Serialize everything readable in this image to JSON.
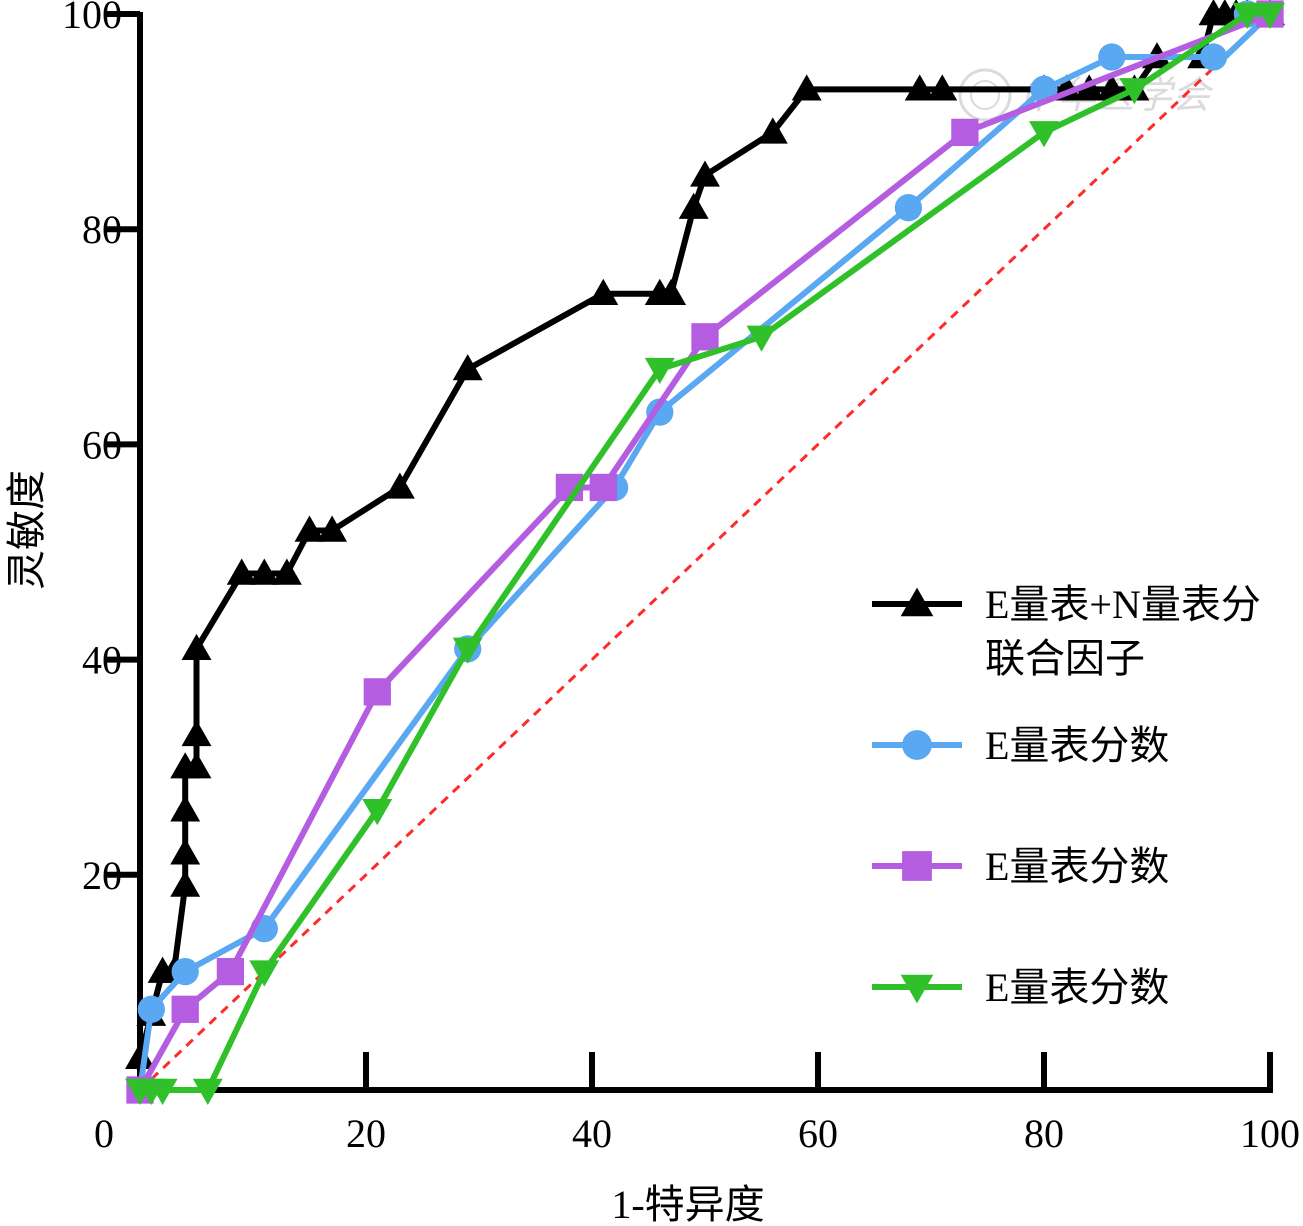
{
  "chart_data": {
    "type": "line",
    "title": "",
    "xlabel": "1-特异度",
    "ylabel": "灵敏度",
    "xlim": [
      0,
      100
    ],
    "ylim": [
      0,
      100
    ],
    "xticks": [
      "0",
      "20",
      "40",
      "60",
      "80",
      "100"
    ],
    "yticks": [
      "20",
      "40",
      "60",
      "80",
      "100"
    ],
    "grid": false,
    "legend_position": "right",
    "reference_line": {
      "x": [
        0,
        100
      ],
      "y": [
        0,
        100
      ],
      "color": "#ff2a2a",
      "style": "dashed"
    },
    "watermark_text": "中华医学会",
    "series": [
      {
        "name": "E量表+N量表分联合因子",
        "legend_lines": [
          "E量表+N量表分",
          "联合因子"
        ],
        "color": "#000000",
        "marker": "triangle-up",
        "x": [
          0,
          1,
          2,
          3,
          4,
          4,
          4,
          4,
          5,
          5,
          5,
          9,
          11,
          13,
          15,
          17,
          23,
          29,
          41,
          46,
          47,
          49,
          50,
          56,
          59,
          69,
          71,
          80,
          82,
          84,
          86,
          88,
          90,
          94,
          95,
          96,
          97,
          98,
          100
        ],
        "y": [
          3,
          7,
          11,
          11,
          19,
          22,
          26,
          30,
          30,
          33,
          41,
          48,
          48,
          48,
          52,
          52,
          56,
          67,
          74,
          74,
          74,
          82,
          85,
          89,
          93,
          93,
          93,
          93,
          93,
          93,
          93,
          93,
          96,
          96,
          100,
          100,
          100,
          100,
          100
        ]
      },
      {
        "name": "E量表分数",
        "legend_lines": [
          "E量表分数"
        ],
        "color": "#5aa7f2",
        "marker": "circle",
        "x": [
          0,
          1,
          4,
          11,
          29,
          42,
          46,
          68,
          80,
          86,
          96,
          100
        ],
        "y": [
          0,
          7.5,
          11,
          15,
          41,
          56,
          63,
          82,
          93,
          96,
          96,
          100
        ],
        "marker_x": [
          0,
          1,
          4,
          11,
          29,
          42,
          46,
          68,
          80,
          86,
          95,
          98,
          100
        ],
        "marker_y": [
          0,
          7.5,
          11,
          15,
          41,
          56,
          63,
          82,
          93,
          96,
          96,
          100,
          100
        ]
      },
      {
        "name": "E量表分数",
        "legend_lines": [
          "E量表分数"
        ],
        "color": "#b45de0",
        "marker": "square",
        "x": [
          0,
          4,
          8,
          21,
          38,
          41,
          50,
          73,
          100
        ],
        "y": [
          0,
          7.5,
          11,
          37,
          56,
          56,
          70,
          89,
          100
        ]
      },
      {
        "name": "E量表分数",
        "legend_lines": [
          "E量表分数"
        ],
        "color": "#2fc02a",
        "marker": "triangle-down",
        "x": [
          0,
          1,
          2,
          6,
          11,
          21,
          29,
          46,
          55,
          80,
          88,
          98,
          100
        ],
        "y": [
          0,
          0,
          0,
          0,
          11,
          26,
          41,
          67,
          70,
          89,
          93,
          100,
          100
        ]
      }
    ]
  }
}
